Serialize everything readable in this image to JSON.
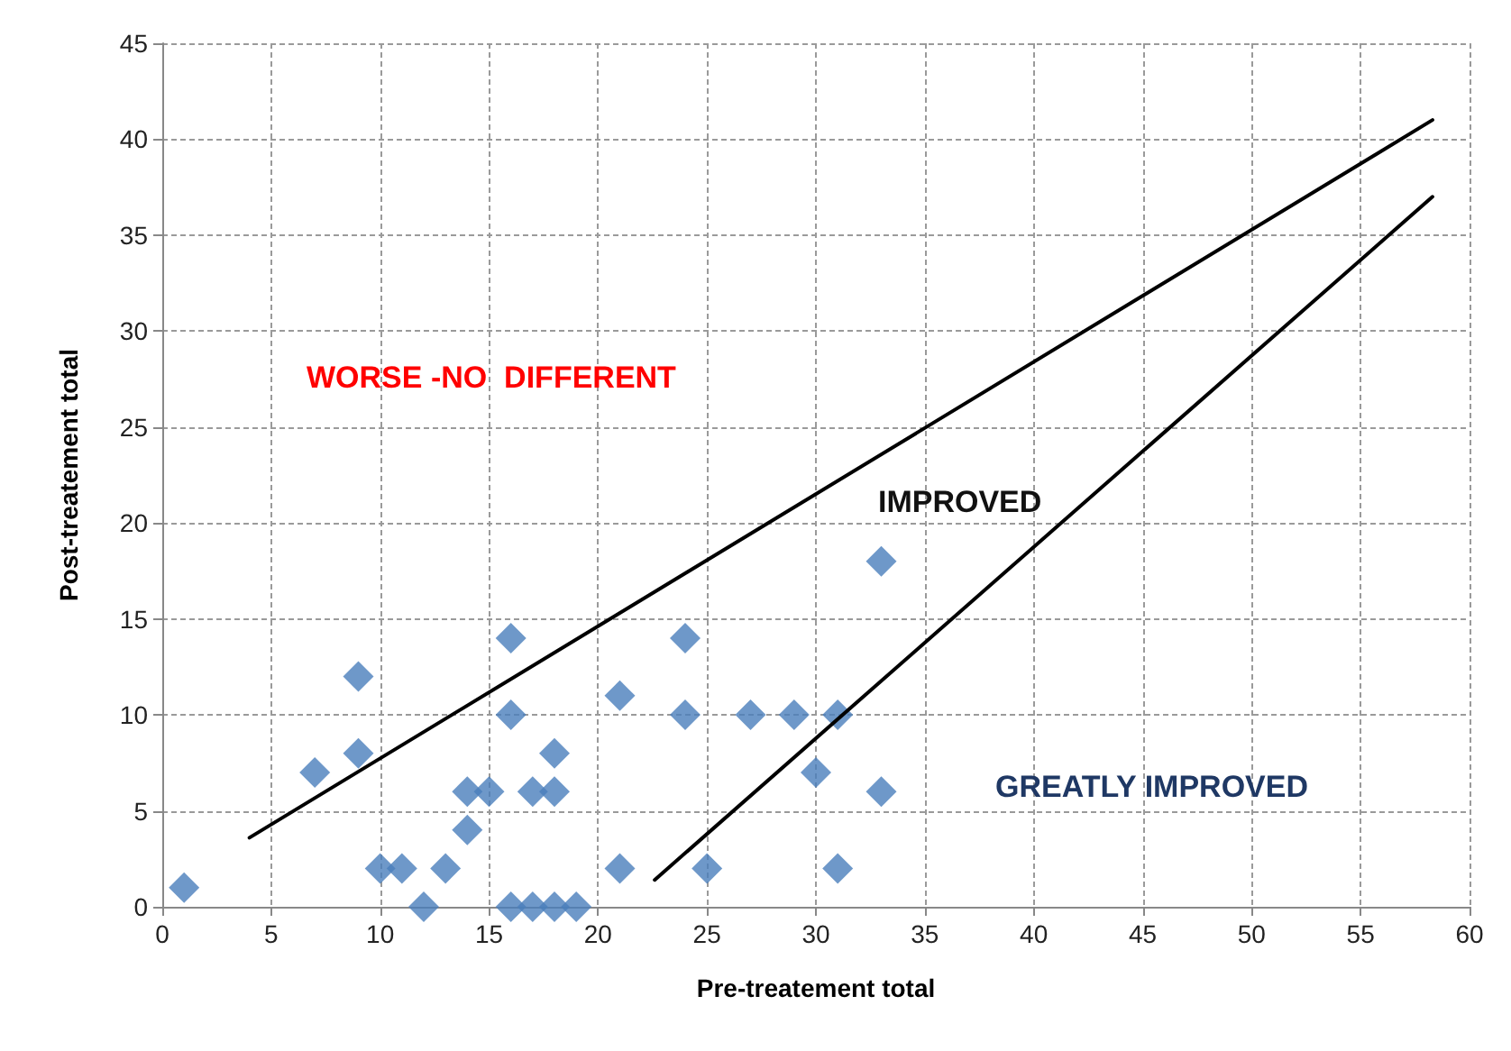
{
  "chart_data": {
    "type": "scatter",
    "xlabel": "Pre-treatement total",
    "ylabel": "Post-treatement total",
    "xlim": [
      0,
      60
    ],
    "xticks": [
      0,
      5,
      10,
      15,
      20,
      25,
      30,
      35,
      40,
      45,
      50,
      55,
      60
    ],
    "ylim": [
      0,
      45
    ],
    "yticks": [
      0,
      5,
      10,
      15,
      20,
      25,
      30,
      35,
      40,
      45
    ],
    "grid": true,
    "marker": "diamond",
    "series": [
      {
        "color": "#4a7ebb",
        "x": [
          1,
          7,
          9,
          9,
          10,
          11,
          12,
          13,
          14,
          14,
          15,
          16,
          16,
          16,
          17,
          17,
          18,
          18,
          18,
          19,
          21,
          21,
          24,
          24,
          25,
          27,
          29,
          30,
          31,
          31,
          33,
          33
        ],
        "values": [
          1,
          7,
          12,
          8,
          2,
          2,
          0,
          2,
          4,
          6,
          6,
          14,
          10,
          0,
          6,
          0,
          8,
          6,
          0,
          0,
          11,
          2,
          14,
          10,
          2,
          10,
          10,
          7,
          10,
          2,
          18,
          6
        ]
      },
      {
        "type": "line",
        "color": "#000000",
        "marker": "none",
        "line_style": "solid",
        "x": [
          4,
          58.3
        ],
        "values": [
          3.6,
          41
        ]
      },
      {
        "type": "line",
        "color": "#000000",
        "marker": "none",
        "line_style": "solid",
        "x": [
          22.6,
          58.3
        ],
        "values": [
          1.4,
          37
        ]
      }
    ],
    "annotations": [
      "WORSE -NO  DIFFERENT",
      "IMPROVED",
      "GREATLY IMPROVED"
    ]
  }
}
